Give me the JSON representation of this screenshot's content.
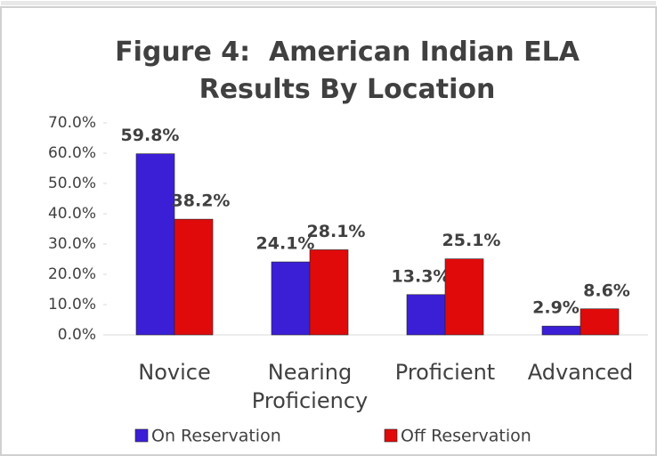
{
  "chart_data": {
    "type": "bar",
    "title": "Figure 4:  American Indian ELA Results By Location",
    "categories": [
      "Novice",
      "Nearing Proficiency",
      "Proficient",
      "Advanced"
    ],
    "series": [
      {
        "name": "On Reservation",
        "color": "#3b1fd6",
        "values": [
          59.8,
          24.1,
          13.3,
          2.9
        ],
        "value_labels": [
          "59.8%",
          "24.1%",
          "13.3%",
          "2.9%"
        ]
      },
      {
        "name": "Off Reservation",
        "color": "#e10a0a",
        "values": [
          38.2,
          28.1,
          25.1,
          8.6
        ],
        "value_labels": [
          "38.2%",
          "28.1%",
          "25.1%",
          "8.6%"
        ]
      }
    ],
    "ylim": [
      0,
      70
    ],
    "yticks": [
      {
        "value": 0,
        "label": "0.0%"
      },
      {
        "value": 10,
        "label": "10.0%"
      },
      {
        "value": 20,
        "label": "20.0%"
      },
      {
        "value": 30,
        "label": "30.0%"
      },
      {
        "value": 40,
        "label": "40.0%"
      },
      {
        "value": 50,
        "label": "50.0%"
      },
      {
        "value": 60,
        "label": "60.0%"
      },
      {
        "value": 70,
        "label": "70.0%"
      }
    ],
    "legend": "bottom"
  }
}
